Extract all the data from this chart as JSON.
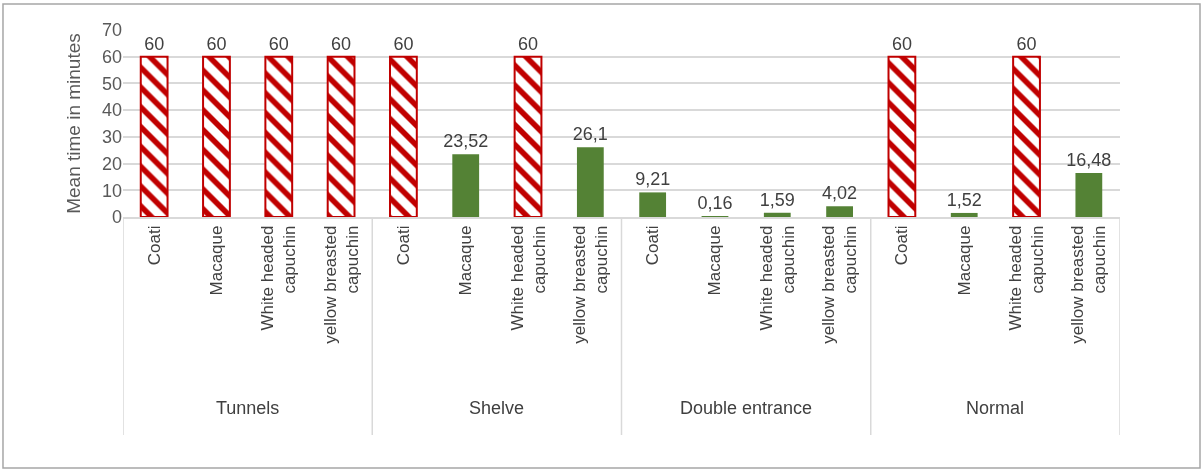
{
  "chart_data": {
    "type": "bar",
    "ylabel": "Mean time in minutes",
    "categories": [
      "Coati",
      "Macaque",
      "White headed capuchin",
      "yellow breasted capuchin",
      "Coati",
      "Macaque",
      "White headed capuchin",
      "yellow breasted capuchin",
      "Coati",
      "Macaque",
      "White headed capuchin",
      "yellow breasted capuchin",
      "Coati",
      "Macaque",
      "White headed capuchin",
      "yellow breasted capuchin"
    ],
    "series": [
      {
        "color": "#548235",
        "values": [
          null,
          null,
          null,
          null,
          null,
          23.52,
          null,
          26.1,
          9.21,
          0.16,
          1.59,
          4.02,
          null,
          1.52,
          null,
          16.48
        ],
        "value_labels": [
          null,
          null,
          null,
          null,
          null,
          "23,52",
          null,
          "26,1",
          "9,21",
          "0,16",
          "1,59",
          "4,02",
          null,
          "1,52",
          null,
          "16,48"
        ]
      },
      {
        "color": "#c00000",
        "values": [
          60,
          60,
          60,
          60,
          60,
          null,
          60,
          null,
          null,
          null,
          null,
          null,
          60,
          null,
          60,
          null
        ],
        "value_labels": [
          "60",
          "60",
          "60",
          "60",
          "60",
          null,
          "60",
          null,
          null,
          null,
          null,
          null,
          "60",
          null,
          "60",
          null
        ]
      }
    ],
    "annotations": [
      "Tunnels",
      "Shelve",
      "Double entrance",
      "Normal"
    ],
    "ylim": [
      0,
      70
    ],
    "yticks": [
      0,
      10,
      20,
      30,
      40,
      50,
      60,
      70
    ],
    "grid": "y"
  }
}
